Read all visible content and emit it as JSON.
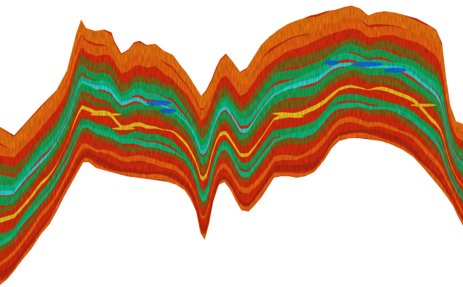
{
  "image": {
    "kind": "seismic-attribute-section",
    "background_color": "#ffffff",
    "palette": {
      "edge": "#ff7a10",
      "orange": "#ff6a12",
      "red": "#e8300e",
      "dark_red": "#c82a10",
      "yellow": "#ffd21e",
      "olive": "#8a6a1a",
      "green": "#1fae56",
      "teal": "#12c98a",
      "cyan": "#2ee6e0",
      "blue": "#1566ff"
    }
  }
}
